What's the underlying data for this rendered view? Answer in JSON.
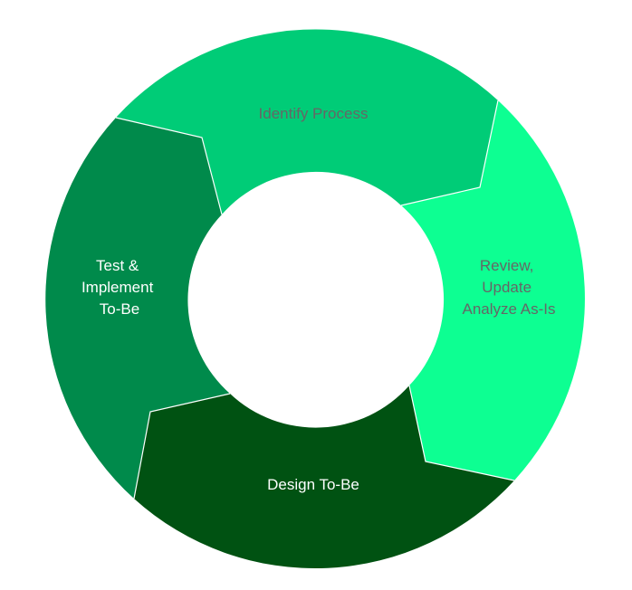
{
  "cycle": {
    "segments": [
      {
        "id": "identify",
        "lines": [
          "Identify Process"
        ],
        "fill": "#00cc77",
        "text_color": "#666666"
      },
      {
        "id": "review",
        "lines": [
          "Review,",
          "Update",
          "Analyze As-Is"
        ],
        "fill": "#0dff92",
        "text_color": "#666666"
      },
      {
        "id": "design",
        "lines": [
          "Design To-Be"
        ],
        "fill": "#005212",
        "text_color": "#ffffff"
      },
      {
        "id": "test",
        "lines": [
          "Test &",
          "Implement",
          "To-Be"
        ],
        "fill": "#008a4b",
        "text_color": "#ffffff"
      }
    ]
  }
}
